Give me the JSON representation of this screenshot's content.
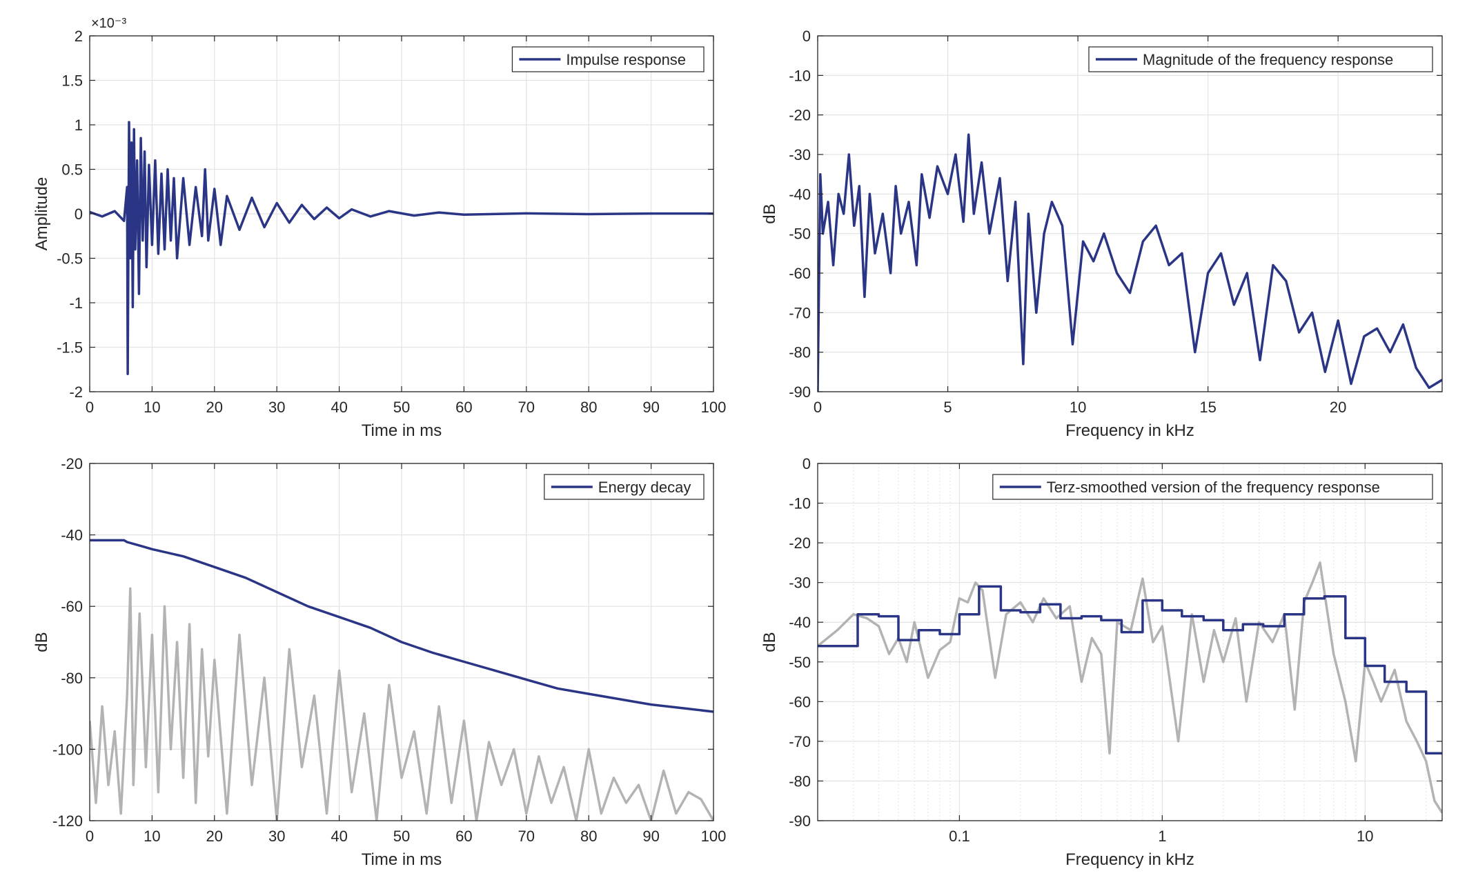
{
  "colors": {
    "primary": "#2b3585",
    "background_trace": "#b3b3b3",
    "grid": "#e3e3e3",
    "axis": "#262626"
  },
  "chart_data": [
    {
      "id": "impulse",
      "type": "line",
      "title": "",
      "xlabel": "Time in ms",
      "ylabel": "Amplitude",
      "xlim": [
        0,
        100
      ],
      "ylim": [
        -2,
        2
      ],
      "xticks": [
        0,
        10,
        20,
        30,
        40,
        50,
        60,
        70,
        80,
        90,
        100
      ],
      "yticks": [
        -2,
        -1.5,
        -1,
        -0.5,
        0,
        0.5,
        1,
        1.5,
        2
      ],
      "ytick_labels": [
        "-2",
        "-1.5",
        "-1",
        "-0.5",
        "0",
        "0.5",
        "1",
        "1.5",
        "2"
      ],
      "y_exponent_label": "×10⁻³",
      "xscale": "linear",
      "grid": true,
      "legend_position": "top-right",
      "series": [
        {
          "name": "Impulse response",
          "style": "primary",
          "x": [
            0,
            2,
            4,
            5.5,
            6,
            6.1,
            6.3,
            6.5,
            6.7,
            6.9,
            7.1,
            7.3,
            7.6,
            7.9,
            8.2,
            8.5,
            8.8,
            9.1,
            9.5,
            10,
            10.5,
            11,
            11.5,
            12,
            12.5,
            13,
            13.5,
            14,
            15,
            16,
            17,
            18,
            18.5,
            19,
            20,
            21,
            22,
            24,
            26,
            28,
            30,
            32,
            34,
            36,
            38,
            40,
            42,
            45,
            48,
            52,
            56,
            60,
            70,
            80,
            90,
            100
          ],
          "y": [
            0.02,
            -0.03,
            0.03,
            -0.08,
            0.3,
            -1.8,
            1.03,
            -0.5,
            0.8,
            -1.05,
            0.95,
            -0.4,
            0.6,
            -0.9,
            0.85,
            -0.3,
            0.7,
            -0.6,
            0.55,
            -0.35,
            0.6,
            -0.45,
            0.45,
            -0.4,
            0.5,
            -0.3,
            0.4,
            -0.5,
            0.4,
            -0.35,
            0.3,
            -0.25,
            0.5,
            -0.3,
            0.28,
            -0.35,
            0.2,
            -0.18,
            0.18,
            -0.15,
            0.12,
            -0.1,
            0.1,
            -0.06,
            0.07,
            -0.05,
            0.05,
            -0.03,
            0.03,
            -0.02,
            0.015,
            -0.01,
            0.005,
            -0.004,
            0.003,
            0.002
          ]
        }
      ]
    },
    {
      "id": "magnitude",
      "type": "line",
      "title": "",
      "xlabel": "Frequency in kHz",
      "ylabel": "dB",
      "xlim": [
        0,
        24
      ],
      "ylim": [
        -90,
        0
      ],
      "xticks": [
        0,
        5,
        10,
        15,
        20
      ],
      "yticks": [
        -90,
        -80,
        -70,
        -60,
        -50,
        -40,
        -30,
        -20,
        -10,
        0
      ],
      "xscale": "linear",
      "grid": true,
      "legend_position": "top-right",
      "series": [
        {
          "name": "Magnitude of the frequency response",
          "style": "primary",
          "x": [
            0,
            0.1,
            0.2,
            0.4,
            0.6,
            0.8,
            1.0,
            1.2,
            1.4,
            1.6,
            1.8,
            2.0,
            2.2,
            2.5,
            2.8,
            3.0,
            3.2,
            3.5,
            3.8,
            4.0,
            4.3,
            4.6,
            5.0,
            5.3,
            5.6,
            5.8,
            6.0,
            6.3,
            6.6,
            7.0,
            7.3,
            7.6,
            7.9,
            8.1,
            8.4,
            8.7,
            9.0,
            9.4,
            9.8,
            10.2,
            10.6,
            11.0,
            11.5,
            12.0,
            12.5,
            13.0,
            13.5,
            14.0,
            14.5,
            15.0,
            15.5,
            16.0,
            16.5,
            17.0,
            17.5,
            18.0,
            18.5,
            19.0,
            19.5,
            20.0,
            20.5,
            21.0,
            21.5,
            22.0,
            22.5,
            23.0,
            23.5,
            24.0
          ],
          "y": [
            -90,
            -35,
            -50,
            -42,
            -58,
            -40,
            -45,
            -30,
            -48,
            -38,
            -66,
            -40,
            -55,
            -45,
            -60,
            -38,
            -50,
            -42,
            -58,
            -35,
            -46,
            -33,
            -40,
            -30,
            -47,
            -25,
            -45,
            -32,
            -50,
            -36,
            -62,
            -42,
            -83,
            -45,
            -70,
            -50,
            -42,
            -48,
            -78,
            -52,
            -57,
            -50,
            -60,
            -65,
            -52,
            -48,
            -58,
            -55,
            -80,
            -60,
            -55,
            -68,
            -60,
            -82,
            -58,
            -62,
            -75,
            -70,
            -85,
            -72,
            -88,
            -76,
            -74,
            -80,
            -73,
            -84,
            -89,
            -87
          ]
        }
      ]
    },
    {
      "id": "energy",
      "type": "line",
      "title": "",
      "xlabel": "Time in ms",
      "ylabel": "dB",
      "xlim": [
        0,
        100
      ],
      "ylim": [
        -120,
        -20
      ],
      "xticks": [
        0,
        10,
        20,
        30,
        40,
        50,
        60,
        70,
        80,
        90,
        100
      ],
      "yticks": [
        -120,
        -100,
        -80,
        -60,
        -40,
        -20
      ],
      "xscale": "linear",
      "grid": true,
      "legend_position": "top-right",
      "series": [
        {
          "name": "Energy decay",
          "style": "primary",
          "x": [
            0,
            5.5,
            6,
            8,
            10,
            15,
            20,
            25,
            30,
            35,
            40,
            45,
            50,
            55,
            60,
            65,
            70,
            75,
            80,
            85,
            90,
            95,
            100
          ],
          "y": [
            -41.5,
            -41.5,
            -42,
            -43,
            -44,
            -46,
            -49,
            -52,
            -56,
            -60,
            -63,
            -66,
            -70,
            -73,
            -75.5,
            -78,
            -80.5,
            -83,
            -84.5,
            -86,
            -87.5,
            -88.5,
            -89.5
          ]
        },
        {
          "style": "background",
          "x": [
            0,
            1,
            2,
            3,
            4,
            5,
            6,
            6.5,
            7,
            8,
            9,
            10,
            11,
            12,
            13,
            14,
            15,
            16,
            17,
            18,
            19,
            20,
            22,
            24,
            26,
            28,
            30,
            32,
            34,
            36,
            38,
            40,
            42,
            44,
            46,
            48,
            50,
            52,
            54,
            56,
            58,
            60,
            62,
            64,
            66,
            68,
            70,
            72,
            74,
            76,
            78,
            80,
            82,
            84,
            86,
            88,
            90,
            92,
            94,
            96,
            98,
            100
          ],
          "y": [
            -92,
            -115,
            -88,
            -110,
            -95,
            -118,
            -85,
            -55,
            -110,
            -62,
            -105,
            -68,
            -112,
            -60,
            -100,
            -70,
            -108,
            -65,
            -115,
            -72,
            -102,
            -75,
            -118,
            -68,
            -110,
            -80,
            -120,
            -72,
            -105,
            -85,
            -118,
            -78,
            -112,
            -90,
            -120,
            -82,
            -108,
            -95,
            -118,
            -88,
            -115,
            -92,
            -120,
            -98,
            -110,
            -100,
            -118,
            -102,
            -115,
            -105,
            -120,
            -100,
            -118,
            -108,
            -115,
            -110,
            -120,
            -106,
            -118,
            -112,
            -114,
            -120
          ]
        }
      ]
    },
    {
      "id": "terz",
      "type": "line",
      "title": "",
      "xlabel": "Frequency in kHz",
      "ylabel": "dB",
      "xlim": [
        0.02,
        24
      ],
      "ylim": [
        -90,
        0
      ],
      "xticks": [
        0.1,
        1,
        10
      ],
      "xtick_labels": [
        "0.1",
        "1",
        "10"
      ],
      "yticks": [
        -90,
        -80,
        -70,
        -60,
        -50,
        -40,
        -30,
        -20,
        -10,
        0
      ],
      "xscale": "log",
      "grid": true,
      "minor_grid": true,
      "legend_position": "top-right",
      "series": [
        {
          "name": "Terz-smoothed version of the frequency response",
          "style": "primary",
          "step": true,
          "x": [
            0.02,
            0.0315,
            0.04,
            0.05,
            0.063,
            0.08,
            0.1,
            0.125,
            0.16,
            0.2,
            0.25,
            0.315,
            0.4,
            0.5,
            0.63,
            0.8,
            1.0,
            1.25,
            1.6,
            2.0,
            2.5,
            3.15,
            4.0,
            5.0,
            6.3,
            8.0,
            10.0,
            12.5,
            16.0,
            20.0,
            24.0
          ],
          "y": [
            -46,
            -38,
            -38.5,
            -44.5,
            -42,
            -43,
            -38,
            -31,
            -37,
            -37.5,
            -35.5,
            -39,
            -38.5,
            -39.5,
            -42.5,
            -34.5,
            -37,
            -38.5,
            -39.5,
            -42,
            -40.5,
            -41,
            -38,
            -34,
            -33.5,
            -44,
            -51,
            -55,
            -57.5,
            -73,
            -73
          ]
        },
        {
          "style": "background",
          "x": [
            0.02,
            0.025,
            0.03,
            0.035,
            0.04,
            0.045,
            0.05,
            0.055,
            0.06,
            0.07,
            0.08,
            0.09,
            0.1,
            0.11,
            0.12,
            0.13,
            0.15,
            0.17,
            0.2,
            0.23,
            0.26,
            0.3,
            0.35,
            0.4,
            0.45,
            0.5,
            0.55,
            0.6,
            0.7,
            0.8,
            0.9,
            1.0,
            1.2,
            1.4,
            1.6,
            1.8,
            2.0,
            2.3,
            2.6,
            3.0,
            3.5,
            4.0,
            4.5,
            5.0,
            5.5,
            6.0,
            7.0,
            8.0,
            9.0,
            10.0,
            11.0,
            12.0,
            14.0,
            16.0,
            18.0,
            20.0,
            22.0,
            24.0
          ],
          "y": [
            -46,
            -42,
            -38,
            -39,
            -41,
            -48,
            -44,
            -50,
            -40,
            -54,
            -47,
            -45,
            -34,
            -35,
            -30,
            -32,
            -54,
            -38,
            -35,
            -40,
            -34,
            -39,
            -36,
            -55,
            -44,
            -48,
            -73,
            -40,
            -42,
            -29,
            -45,
            -41,
            -70,
            -38,
            -55,
            -42,
            -50,
            -39,
            -60,
            -40,
            -45,
            -38,
            -62,
            -35,
            -30,
            -25,
            -48,
            -60,
            -75,
            -50,
            -55,
            -60,
            -52,
            -65,
            -70,
            -75,
            -85,
            -88
          ]
        }
      ]
    }
  ]
}
